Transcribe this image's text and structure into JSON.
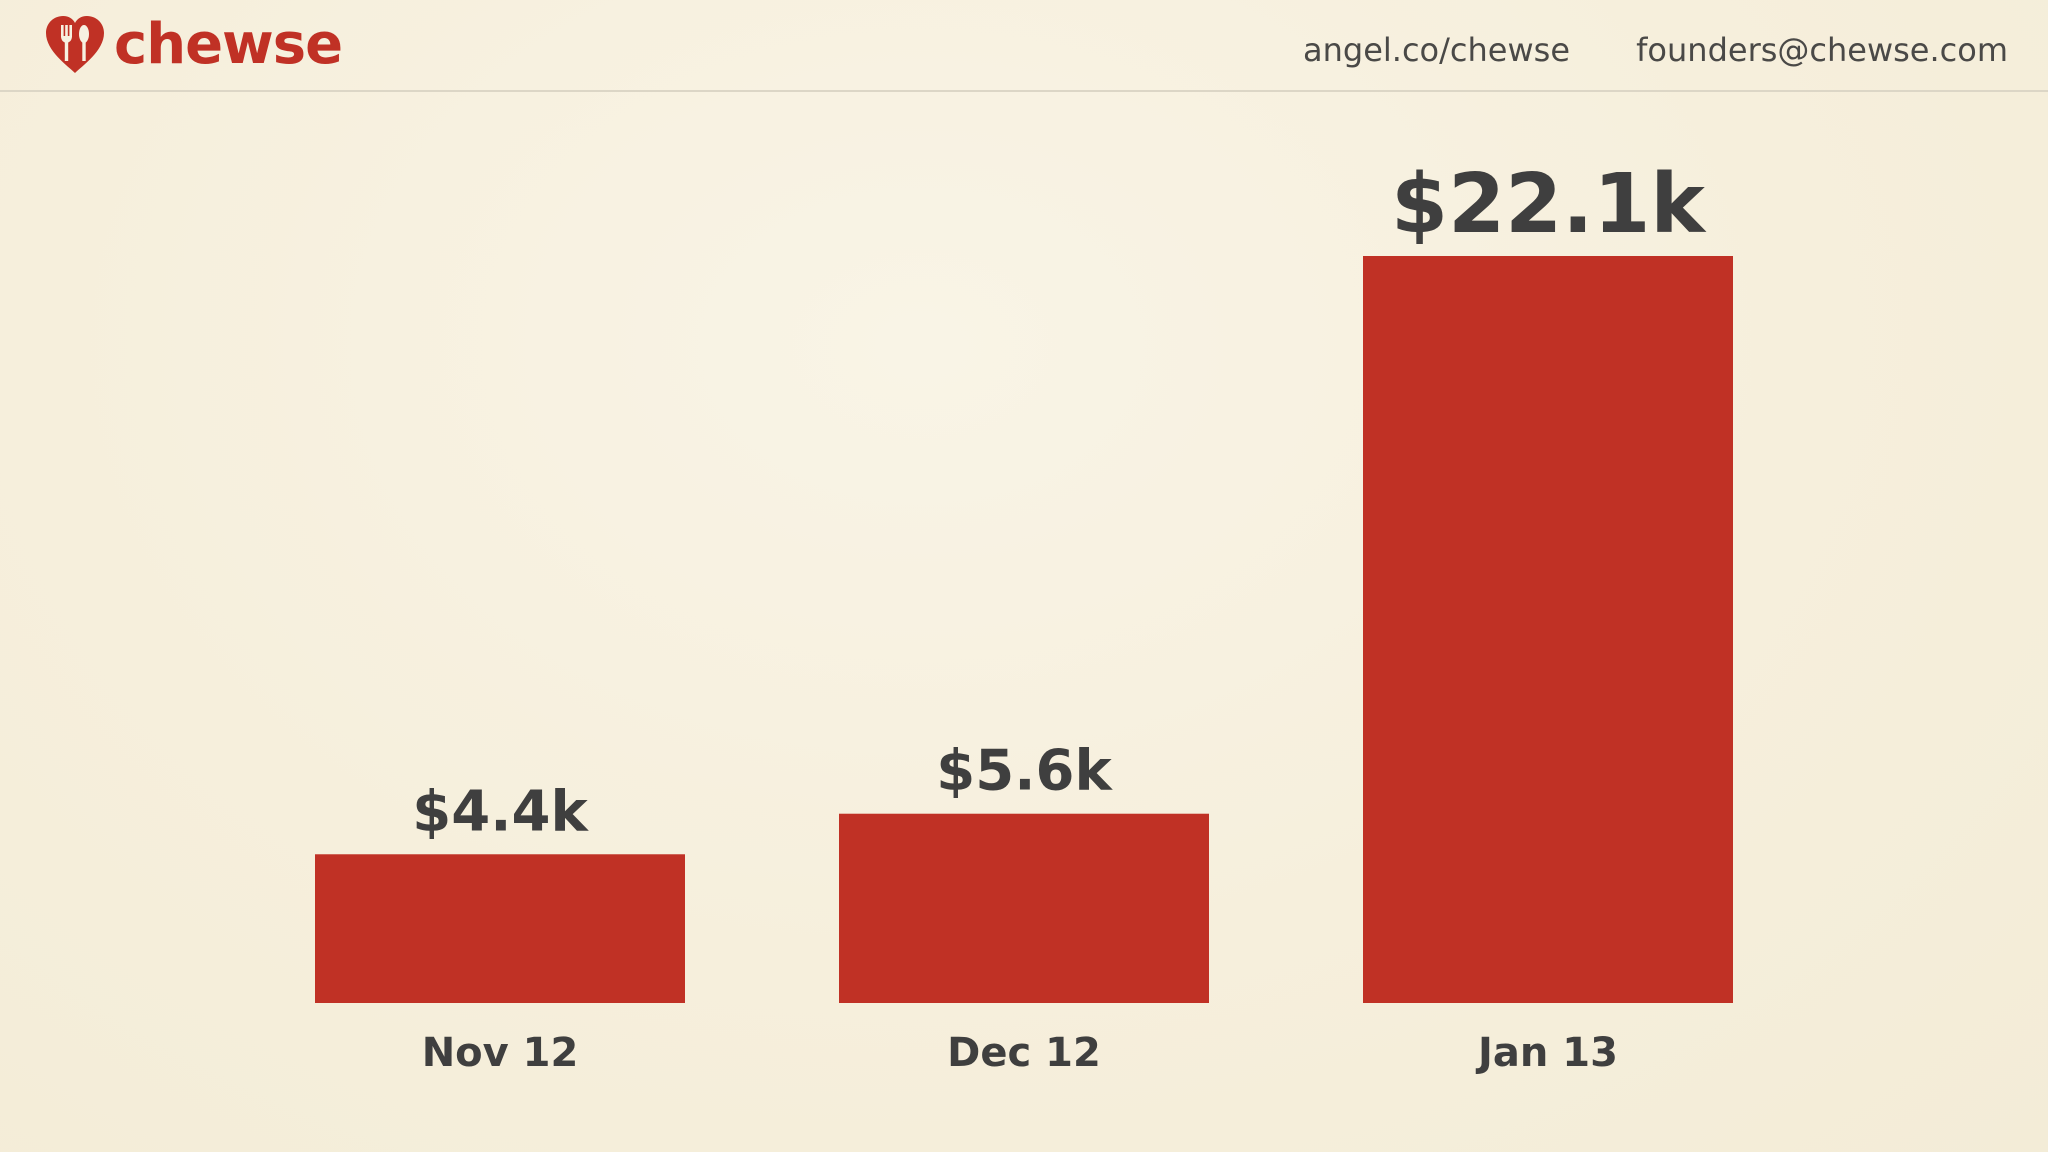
{
  "brand": {
    "name": "chewse",
    "color": "#c03125",
    "icon": "heart-fork-knife-icon"
  },
  "header": {
    "angel_link": "angel.co/chewse",
    "email": "founders@chewse.com"
  },
  "chart_data": {
    "type": "bar",
    "categories": [
      "Nov 12",
      "Dec 12",
      "Jan 13"
    ],
    "values": [
      4.4,
      5.6,
      22.1
    ],
    "value_labels": [
      "$4.4k",
      "$5.6k",
      "$22.1k"
    ],
    "title": "",
    "xlabel": "",
    "ylabel": "",
    "ylim": [
      0,
      22.1
    ],
    "grid": false,
    "bar_color": "#c03125",
    "label_color": "#3f3f3f"
  }
}
